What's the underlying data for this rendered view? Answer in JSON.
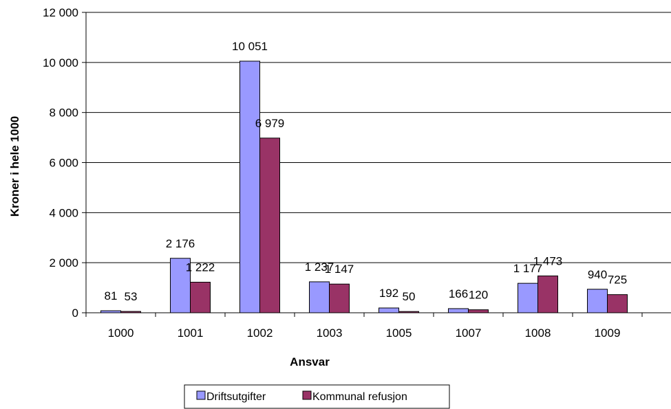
{
  "chart_data": {
    "type": "bar",
    "title": "",
    "xlabel": "Ansvar",
    "ylabel": "Kroner i hele 1000",
    "categories": [
      "1000",
      "1001",
      "1002",
      "1003",
      "1005",
      "1007",
      "1008",
      "1009"
    ],
    "ylim": [
      0,
      12000
    ],
    "yticks": [
      0,
      2000,
      4000,
      6000,
      8000,
      10000,
      12000
    ],
    "ytick_labels": [
      "0",
      "2 000",
      "4 000",
      "6 000",
      "8 000",
      "10 000",
      "12 000"
    ],
    "grid": "horizontal",
    "legend_position": "bottom",
    "series": [
      {
        "name": "Driftsutgifter",
        "color": "#9999ff",
        "values": [
          81,
          2176,
          10051,
          1237,
          192,
          166,
          1177,
          940
        ],
        "labels": [
          "81",
          "2 176",
          "10 051",
          "1 237",
          "192",
          "166",
          "1 177",
          "940"
        ]
      },
      {
        "name": "Kommunal refusjon",
        "color": "#993366",
        "values": [
          53,
          1222,
          6979,
          1147,
          50,
          120,
          1473,
          725
        ],
        "labels": [
          "53",
          "1 222",
          "6 979",
          "1 147",
          "50",
          "120",
          "1 473",
          "725"
        ]
      }
    ]
  }
}
